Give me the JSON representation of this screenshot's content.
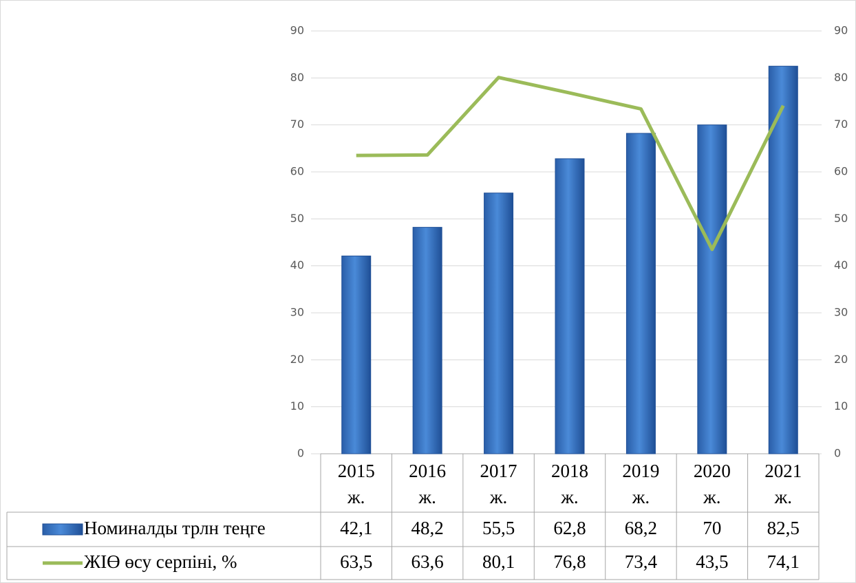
{
  "chart_data": {
    "type": "bar",
    "categories": [
      "2015ж.",
      "2016ж.",
      "2017ж.",
      "2018ж.",
      "2019ж.",
      "2020ж.",
      "2021ж."
    ],
    "series": [
      {
        "name": "Номиналды трлн теңге",
        "type": "bar",
        "color": "#3a75c4",
        "values": [
          42.1,
          48.2,
          55.5,
          62.8,
          68.2,
          70,
          82.5
        ],
        "value_labels": [
          "42,1",
          "48,2",
          "55,5",
          "62,8",
          "68,2",
          "70",
          "82,5"
        ]
      },
      {
        "name": "ЖІӨ өсу серпіні, %",
        "type": "line",
        "axis": "y2",
        "color": "#9bbb59",
        "values": [
          63.5,
          63.6,
          80.1,
          76.8,
          73.4,
          43.5,
          74.1
        ],
        "value_labels": [
          "63,5",
          "63,6",
          "80,1",
          "76,8",
          "73,4",
          "43,5",
          "74,1"
        ]
      }
    ],
    "ylim": [
      0,
      90
    ],
    "yticks": [
      0,
      10,
      20,
      30,
      40,
      50,
      60,
      70,
      80,
      90
    ],
    "y2lim": [
      0,
      90
    ],
    "y2ticks": [
      0,
      10,
      20,
      30,
      40,
      50,
      60,
      70,
      80,
      90
    ],
    "grid": true
  }
}
